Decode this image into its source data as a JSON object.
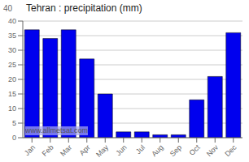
{
  "chart_data": {
    "type": "bar",
    "title": "Tehran : precipitation (mm)",
    "categories": [
      "Jan",
      "Feb",
      "Mar",
      "Apr",
      "May",
      "Jun",
      "Jul",
      "Aug",
      "Sep",
      "Oct",
      "Nov",
      "Dec"
    ],
    "values": [
      37,
      34,
      37,
      27,
      15,
      2,
      2,
      1,
      1,
      13,
      21,
      36
    ],
    "color": "#0000ee",
    "ylim": [
      0,
      40
    ],
    "yticks": [
      0,
      5,
      10,
      15,
      20,
      25,
      30,
      35,
      40
    ],
    "grid": true,
    "annotations": [
      "40",
      "www.allmetsat.com"
    ]
  }
}
